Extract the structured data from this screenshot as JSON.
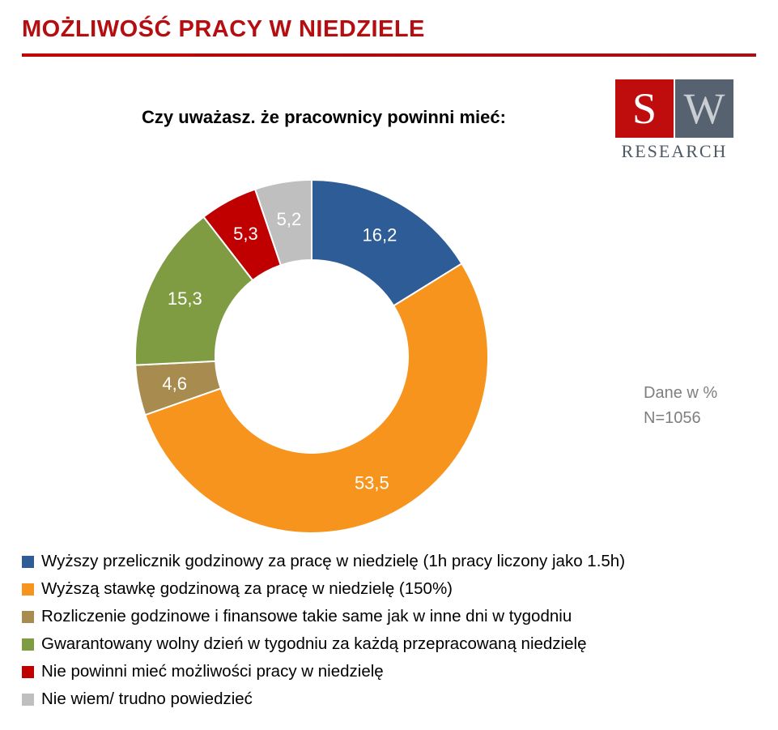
{
  "page": {
    "title": "MOŻLIWOŚĆ PRACY W NIEDZIELE"
  },
  "logo": {
    "letter_s": "S",
    "letter_w": "W",
    "caption": "RESEARCH"
  },
  "annotation": {
    "line1": "Dane w %",
    "line2": "N=1056"
  },
  "chart_data": {
    "type": "pie",
    "style": "donut",
    "title": "Czy uważasz. że pracownicy powinni mieć:",
    "units": "%",
    "sample": "N=1056",
    "start_angle_deg": 0,
    "direction": "clockwise",
    "legend_position": "bottom-left",
    "segments": [
      {
        "label": "Wyższy przelicznik godzinowy za pracę w niedzielę (1h pracy liczony jako 1.5h)",
        "value": 16.2,
        "display": "16,2",
        "color": "#2e5c97"
      },
      {
        "label": "Wyższą stawkę godzinową za pracę w niedzielę (150%)",
        "value": 53.5,
        "display": "53,5",
        "color": "#f7941d"
      },
      {
        "label": "Rozliczenie godzinowe i finansowe takie same jak w inne dni w tygodniu",
        "value": 4.6,
        "display": "4,6",
        "color": "#a88b4f"
      },
      {
        "label": "Gwarantowany wolny dzień w tygodniu za każdą przepracowaną niedzielę",
        "value": 15.3,
        "display": "15,3",
        "color": "#7f9c42"
      },
      {
        "label": "Nie powinni mieć możliwości pracy w niedzielę",
        "value": 5.3,
        "display": "5,3",
        "color": "#c00000"
      },
      {
        "label": "Nie wiem/ trudno powiedzieć",
        "value": 5.2,
        "display": "5,2",
        "color": "#bfbfbf"
      }
    ]
  }
}
